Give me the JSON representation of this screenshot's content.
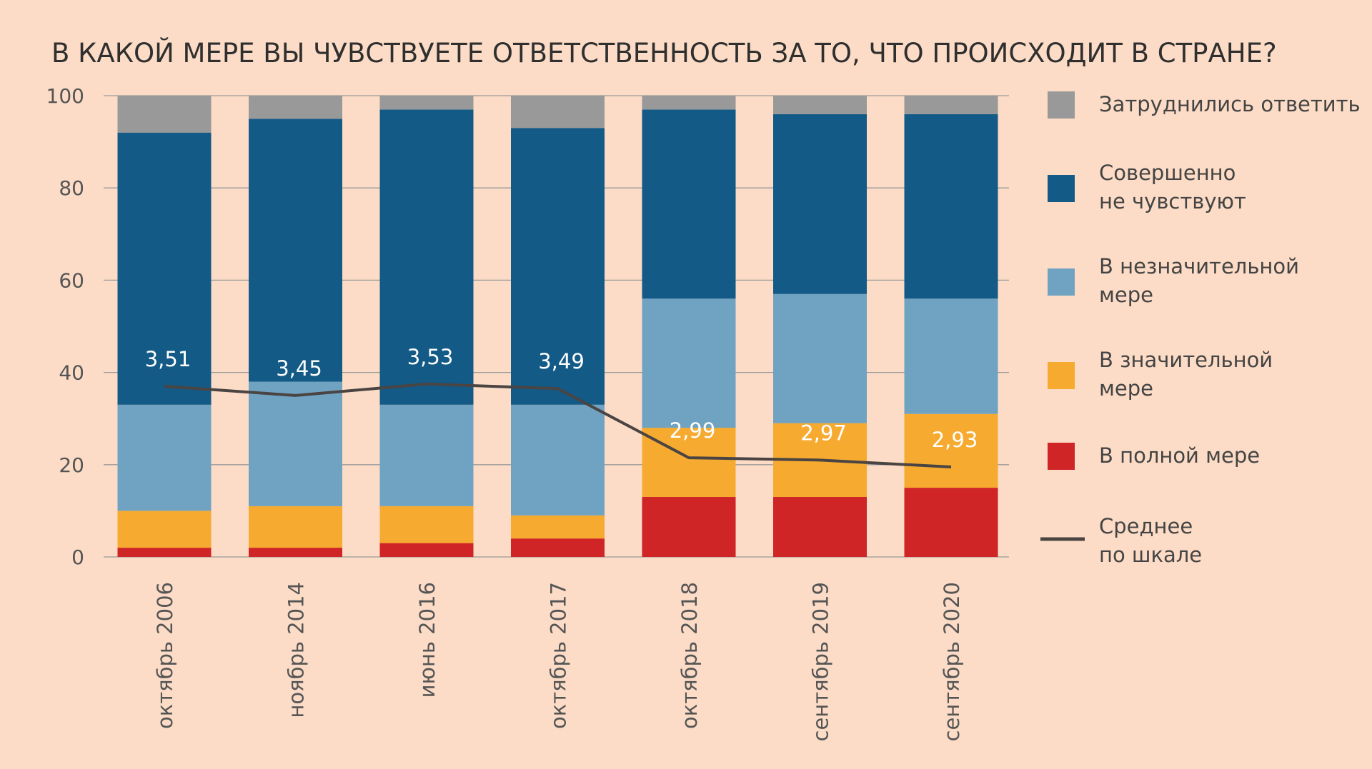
{
  "chart_data": {
    "type": "bar",
    "stacked": true,
    "title": "В КАКОЙ МЕРЕ ВЫ ЧУВСТВУЕТЕ ОТВЕТСТВЕННОСТЬ ЗА ТО, ЧТО ПРОИСХОДИТ В СТРАНЕ?",
    "ylim": [
      0,
      100
    ],
    "yticks": [
      "0",
      "20",
      "40",
      "60",
      "80",
      "100"
    ],
    "categories": [
      "октябрь 2006",
      "ноябрь 2014",
      "июнь 2016",
      "октябрь 2017",
      "октябрь 2018",
      "сентябрь 2019",
      "сентябрь 2020"
    ],
    "series": [
      {
        "name": "В полной мере",
        "color": "#cf2527",
        "values": [
          2,
          2,
          3,
          4,
          13,
          13,
          15
        ]
      },
      {
        "name": "В значительной мере",
        "color": "#f6ab30",
        "values": [
          8,
          9,
          8,
          5,
          15,
          16,
          16
        ]
      },
      {
        "name": "В незначительной мере",
        "color": "#70a3c2",
        "values": [
          23,
          27,
          22,
          24,
          28,
          28,
          25
        ]
      },
      {
        "name": "Совершенно не чувствуют",
        "color": "#135a87",
        "values": [
          59,
          57,
          64,
          60,
          41,
          39,
          40
        ]
      },
      {
        "name": "Затруднились ответить",
        "color": "#999999",
        "values": [
          8,
          5,
          3,
          7,
          3,
          4,
          4
        ]
      }
    ],
    "line": {
      "name": "Среднее по шкале",
      "color": "#4a4443",
      "labels": [
        "3,51",
        "3,45",
        "3,53",
        "3,49",
        "2,99",
        "2,97",
        "2,93"
      ],
      "plotted_y": [
        37,
        35,
        37.5,
        36.5,
        21.5,
        21,
        19.5
      ]
    },
    "legend": [
      {
        "key": "dk",
        "lines": [
          "Затруднились ответить"
        ],
        "color": "#999999"
      },
      {
        "key": "not",
        "lines": [
          "Совершенно",
          "не чувствуют"
        ],
        "color": "#135a87"
      },
      {
        "key": "minor",
        "lines": [
          "В незначительной",
          "мере"
        ],
        "color": "#70a3c2"
      },
      {
        "key": "major",
        "lines": [
          "В значительной",
          "мере"
        ],
        "color": "#f6ab30"
      },
      {
        "key": "full",
        "lines": [
          "В полной мере"
        ],
        "color": "#cf2527"
      },
      {
        "key": "avg",
        "lines": [
          "Среднее",
          "по шкале"
        ],
        "color": "#4a4443",
        "line": true
      }
    ],
    "legend_position": "right"
  }
}
